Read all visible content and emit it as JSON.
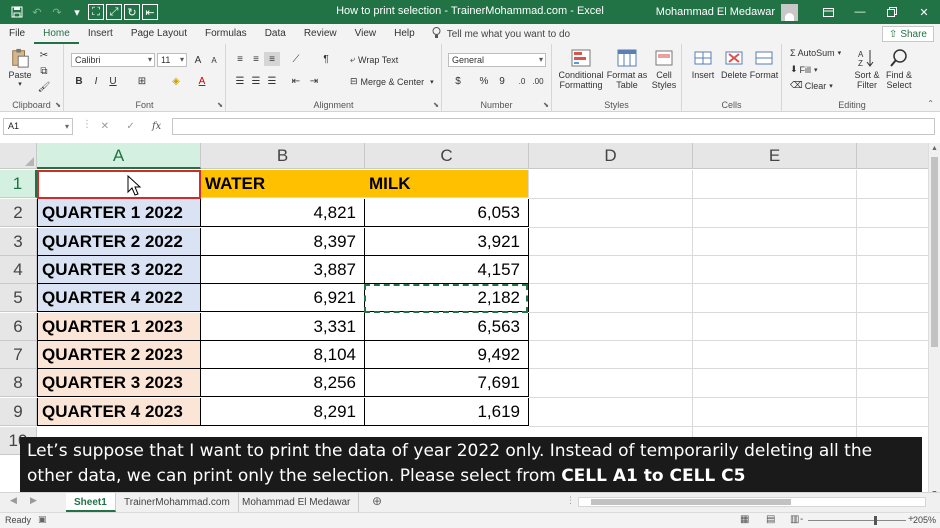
{
  "window": {
    "title": "How to print selection - TrainerMohammad.com  -  Excel",
    "user_name": "Mohammad El Medawar",
    "colors": {
      "brand": "#217346"
    }
  },
  "tabs": [
    "File",
    "Home",
    "Insert",
    "Page Layout",
    "Formulas",
    "Data",
    "Review",
    "View",
    "Help"
  ],
  "tell_me": "Tell me what you want to do",
  "share_label": "Share",
  "ribbon": {
    "clipboard": {
      "paste": "Paste",
      "label": "Clipboard"
    },
    "font": {
      "family": "Calibri",
      "size": "11",
      "label": "Font",
      "bold": "B",
      "italic": "I",
      "underline": "U"
    },
    "alignment": {
      "wrap_text": "Wrap Text",
      "merge_center": "Merge & Center",
      "label": "Alignment"
    },
    "number": {
      "format": "General",
      "label": "Number",
      "currency": "$",
      "percent": "%",
      "comma": "9"
    },
    "styles": {
      "conditional": "Conditional",
      "conditional2": "Formatting",
      "format_as": "Format as",
      "format_as2": "Table",
      "cell_styles": "Cell",
      "cell_styles2": "Styles",
      "label": "Styles"
    },
    "cells": {
      "insert": "Insert",
      "delete": "Delete",
      "format": "Format",
      "label": "Cells"
    },
    "editing": {
      "autosum": "AutoSum",
      "fill": "Fill",
      "clear": "Clear",
      "sort": "Sort &",
      "sort2": "Filter",
      "find": "Find &",
      "find2": "Select",
      "label": "Editing"
    }
  },
  "formula_bar": {
    "name_box": "A1",
    "fx": "fx",
    "content": ""
  },
  "sheet": {
    "columns": [
      "A",
      "B",
      "C",
      "D",
      "E"
    ],
    "rows": [
      "1",
      "2",
      "3",
      "4",
      "5",
      "6",
      "7",
      "8",
      "9",
      "10"
    ],
    "header": {
      "a1": "",
      "b1": "WATER",
      "c1": "MILK"
    },
    "data": [
      {
        "label": "QUARTER 1 2022",
        "water": "4,821",
        "milk": "6,053"
      },
      {
        "label": "QUARTER 2 2022",
        "water": "8,397",
        "milk": "3,921"
      },
      {
        "label": "QUARTER 3 2022",
        "water": "3,887",
        "milk": "4,157"
      },
      {
        "label": "QUARTER 4 2022",
        "water": "6,921",
        "milk": "2,182"
      },
      {
        "label": "QUARTER 1 2023",
        "water": "3,331",
        "milk": "6,563"
      },
      {
        "label": "QUARTER 2 2023",
        "water": "8,104",
        "milk": "9,492"
      },
      {
        "label": "QUARTER 3 2023",
        "water": "8,256",
        "milk": "7,691"
      },
      {
        "label": "QUARTER 4 2023",
        "water": "8,291",
        "milk": "1,619"
      }
    ],
    "colors": {
      "header_fill": "#ffc000",
      "year_2022_fill": "#dae3f3",
      "year_2023_fill": "#fbe5d6"
    }
  },
  "caption": {
    "text": "Let’s suppose that I want to print the data of year 2022 only. Instead of temporarily deleting all the other data, we can print only the selection. Please select from ",
    "bold": "CELL A1 to CELL C5"
  },
  "sheet_tabs": [
    "Sheet1",
    "TrainerMohammad.com",
    "Mohammad El Medawar"
  ],
  "status": {
    "ready": "Ready",
    "zoom": "205%",
    "minus": "-",
    "plus": "+"
  }
}
